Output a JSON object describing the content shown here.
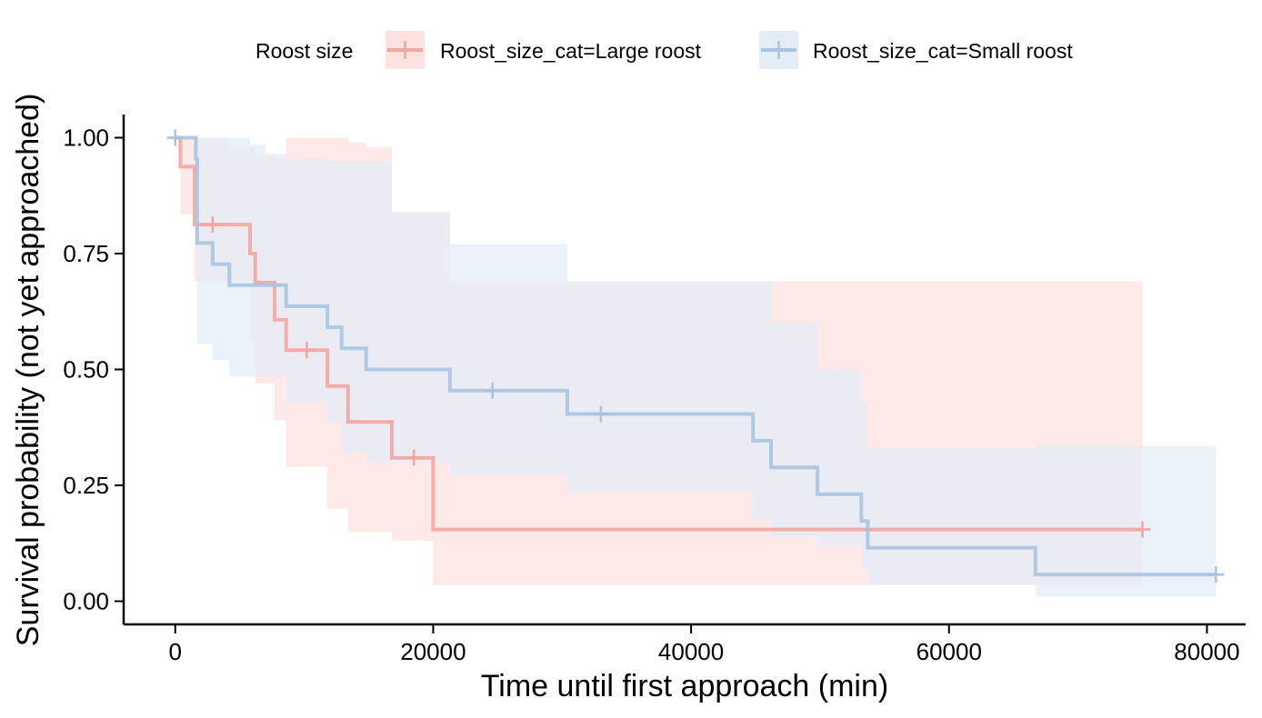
{
  "chart_data": {
    "type": "line",
    "subtype": "kaplan-meier",
    "xlabel": "Time until first approach (min)",
    "ylabel": "Survival probability (not yet approached)",
    "xlim": [
      -4000,
      83000
    ],
    "ylim": [
      -0.05,
      1.05
    ],
    "xticks": [
      0,
      20000,
      40000,
      60000,
      80000
    ],
    "xtick_labels": [
      "0",
      "20000",
      "40000",
      "60000",
      "80000"
    ],
    "yticks": [
      0,
      0.25,
      0.5,
      0.75,
      1
    ],
    "ytick_labels": [
      "0.00",
      "0.25",
      "0.50",
      "0.75",
      "1.00"
    ],
    "grid": false,
    "legend": {
      "title": "Roost size",
      "position": "top"
    },
    "series": [
      {
        "name": "Roost_size_cat=Large roost",
        "color": "#F4A6A0",
        "band_color": "#FDE2E1",
        "steps": [
          [
            0,
            1.0
          ],
          [
            400,
            0.9375
          ],
          [
            1500,
            0.8125
          ],
          [
            5800,
            0.75
          ],
          [
            6200,
            0.6875
          ],
          [
            7700,
            0.6071
          ],
          [
            8600,
            0.5417
          ],
          [
            11800,
            0.4643
          ],
          [
            13400,
            0.3869
          ],
          [
            16800,
            0.3095
          ],
          [
            20000,
            0.1548
          ],
          [
            75000,
            0.1548
          ]
        ],
        "ci_upper": [
          [
            0,
            1.0
          ],
          [
            400,
            1.0
          ],
          [
            1500,
            1.0
          ],
          [
            4200,
            0.975
          ],
          [
            5800,
            0.98
          ],
          [
            6200,
            0.96
          ],
          [
            7700,
            0.955
          ],
          [
            8600,
            1.0
          ],
          [
            11800,
            1.0
          ],
          [
            13400,
            0.99
          ],
          [
            14800,
            0.98
          ],
          [
            16800,
            0.84
          ],
          [
            20000,
            0.84
          ],
          [
            21300,
            0.69
          ],
          [
            44800,
            0.69
          ],
          [
            46200,
            0.69
          ],
          [
            53200,
            0.69
          ],
          [
            75000,
            0.69
          ]
        ],
        "ci_lower": [
          [
            0,
            1.0
          ],
          [
            400,
            0.835
          ],
          [
            1500,
            0.69
          ],
          [
            5800,
            0.56
          ],
          [
            6200,
            0.47
          ],
          [
            7700,
            0.39
          ],
          [
            8600,
            0.29
          ],
          [
            11800,
            0.2
          ],
          [
            13400,
            0.15
          ],
          [
            16800,
            0.13
          ],
          [
            20000,
            0.035
          ],
          [
            75000,
            0.035
          ]
        ],
        "censored": [
          [
            0,
            1.0
          ],
          [
            2900,
            0.8125
          ],
          [
            10200,
            0.5417
          ],
          [
            18500,
            0.3095
          ],
          [
            75000,
            0.1548
          ]
        ]
      },
      {
        "name": "Roost_size_cat=Small roost",
        "color": "#A9C4E2",
        "band_color": "#E4ECF5",
        "steps": [
          [
            0,
            1.0
          ],
          [
            1600,
            0.9545
          ],
          [
            1700,
            0.7727
          ],
          [
            2900,
            0.7273
          ],
          [
            4200,
            0.6818
          ],
          [
            8600,
            0.6364
          ],
          [
            11800,
            0.5909
          ],
          [
            12900,
            0.5455
          ],
          [
            14800,
            0.5
          ],
          [
            21300,
            0.4545
          ],
          [
            30400,
            0.404
          ],
          [
            44800,
            0.3463
          ],
          [
            46200,
            0.2886
          ],
          [
            49800,
            0.2309
          ],
          [
            53200,
            0.1732
          ],
          [
            53700,
            0.1154
          ],
          [
            66700,
            0.0577
          ],
          [
            80700,
            0.0577
          ]
        ],
        "ci_upper": [
          [
            0,
            1.0
          ],
          [
            1600,
            1.0
          ],
          [
            2300,
            1.0
          ],
          [
            4200,
            1.0
          ],
          [
            5800,
            0.985
          ],
          [
            7000,
            0.965
          ],
          [
            8600,
            0.955
          ],
          [
            11800,
            0.95
          ],
          [
            14800,
            0.95
          ],
          [
            16800,
            0.84
          ],
          [
            21300,
            0.77
          ],
          [
            30400,
            0.69
          ],
          [
            44800,
            0.69
          ],
          [
            46200,
            0.6
          ],
          [
            49800,
            0.5
          ],
          [
            53200,
            0.43
          ],
          [
            53700,
            0.33
          ],
          [
            66700,
            0.335
          ],
          [
            80700,
            0.335
          ]
        ],
        "ci_lower": [
          [
            0,
            1.0
          ],
          [
            1600,
            0.95
          ],
          [
            1700,
            0.555
          ],
          [
            2900,
            0.52
          ],
          [
            4200,
            0.485
          ],
          [
            5800,
            0.485
          ],
          [
            8600,
            0.43
          ],
          [
            11800,
            0.385
          ],
          [
            12900,
            0.32
          ],
          [
            14800,
            0.3
          ],
          [
            21300,
            0.27
          ],
          [
            30400,
            0.235
          ],
          [
            44800,
            0.175
          ],
          [
            46200,
            0.138
          ],
          [
            49800,
            0.12
          ],
          [
            53200,
            0.07
          ],
          [
            53700,
            0.035
          ],
          [
            66700,
            0.01
          ],
          [
            80700,
            0.01
          ]
        ],
        "censored": [
          [
            0,
            1.0
          ],
          [
            24600,
            0.4545
          ],
          [
            33000,
            0.404
          ],
          [
            80700,
            0.0577
          ]
        ]
      }
    ]
  }
}
